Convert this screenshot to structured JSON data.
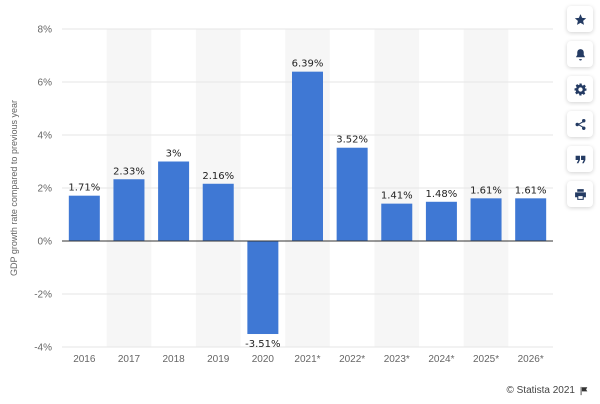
{
  "chart_data": {
    "type": "bar",
    "categories": [
      "2016",
      "2017",
      "2018",
      "2019",
      "2020",
      "2021*",
      "2022*",
      "2023*",
      "2024*",
      "2025*",
      "2026*"
    ],
    "values": [
      1.71,
      2.33,
      3.0,
      2.16,
      -3.51,
      6.39,
      3.52,
      1.41,
      1.48,
      1.61,
      1.61
    ],
    "data_labels": [
      "1.71%",
      "2.33%",
      "3%",
      "2.16%",
      "-3.51%",
      "6.39%",
      "3.52%",
      "1.41%",
      "1.48%",
      "1.61%",
      "1.61%"
    ],
    "title": "",
    "xlabel": "",
    "ylabel": "GDP growth rate compared to previous year",
    "ylim": [
      -4,
      8
    ],
    "yticks": [
      -4,
      -2,
      0,
      2,
      4,
      6,
      8
    ],
    "ytick_labels": [
      "-4%",
      "-2%",
      "0%",
      "2%",
      "4%",
      "6%",
      "8%"
    ],
    "grid": true,
    "alternating_column_bands": true,
    "bar_color": "#3f78d4",
    "band_color": "#f6f6f6",
    "grid_color": "#e6e6e6"
  },
  "toolbar": {
    "buttons": [
      {
        "name": "favorite",
        "icon": "star-icon"
      },
      {
        "name": "notification",
        "icon": "bell-icon"
      },
      {
        "name": "settings",
        "icon": "gear-icon"
      },
      {
        "name": "share",
        "icon": "share-icon"
      },
      {
        "name": "cite",
        "icon": "quote-icon"
      },
      {
        "name": "print",
        "icon": "print-icon"
      }
    ]
  },
  "footer": {
    "credit": "© Statista 2021",
    "flag_icon": "flag-icon"
  }
}
